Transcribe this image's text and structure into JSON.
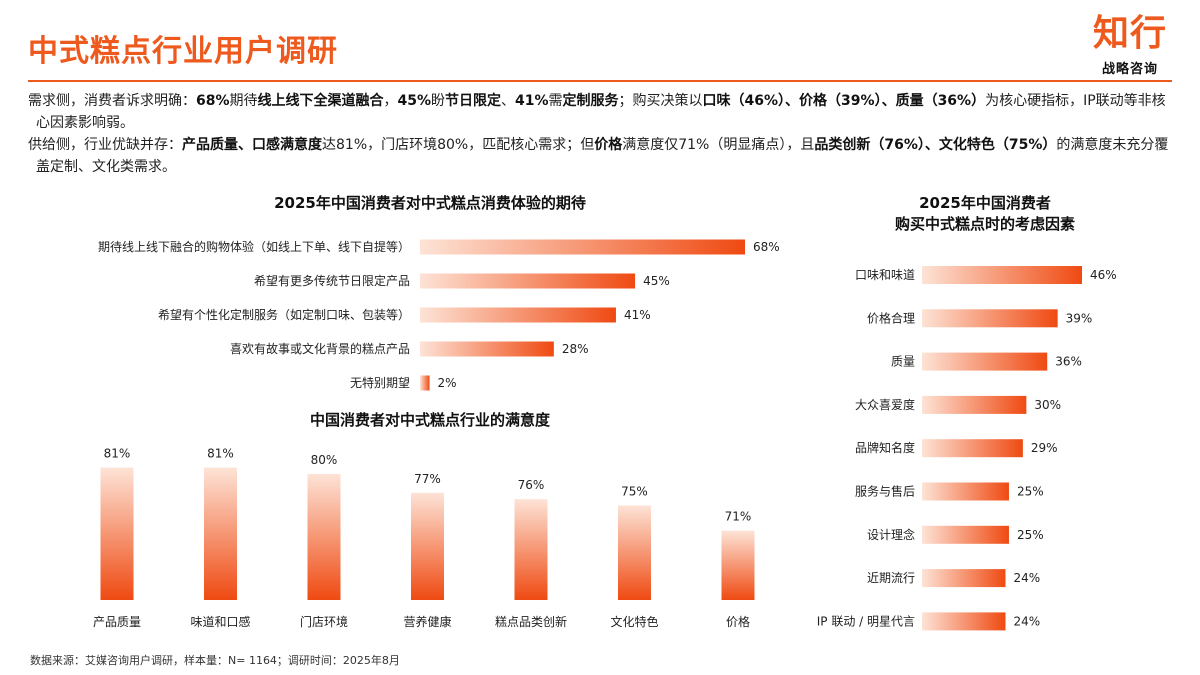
{
  "header": {
    "title": "中式糕点行业用户调研",
    "logo_text": "知行",
    "logo_sub": "战略咨询"
  },
  "summary": {
    "line1": [
      {
        "t": "需求侧，消费者诉求明确：",
        "b": false
      },
      {
        "t": "68%",
        "b": true
      },
      {
        "t": "期待",
        "b": false
      },
      {
        "t": "线上线下全渠道融合",
        "b": true
      },
      {
        "t": "，",
        "b": false
      },
      {
        "t": "45%",
        "b": true
      },
      {
        "t": "盼",
        "b": false
      },
      {
        "t": "节日限定",
        "b": true
      },
      {
        "t": "、",
        "b": false
      },
      {
        "t": "41%",
        "b": true
      },
      {
        "t": "需",
        "b": false
      },
      {
        "t": "定制服务",
        "b": true
      },
      {
        "t": "；购买决策以",
        "b": false
      },
      {
        "t": "口味（46%）、价格（39%）、质量（36%）",
        "b": true
      },
      {
        "t": "为核心硬指标，IP联动等非核心因素影响弱。",
        "b": false
      }
    ],
    "line2": [
      {
        "t": "供给侧，行业优缺并存：",
        "b": false
      },
      {
        "t": "产品质量、口感满意度",
        "b": true
      },
      {
        "t": "达81%，门店环境80%，匹配核心需求；但",
        "b": false
      },
      {
        "t": "价格",
        "b": true
      },
      {
        "t": "满意度仅71%（明显痛点），且",
        "b": false
      },
      {
        "t": "品类创新（76%）、文化特色（75%）",
        "b": true
      },
      {
        "t": "的满意度未充分覆盖定制、文化类需求。",
        "b": false
      }
    ]
  },
  "chart_data": [
    {
      "type": "bar",
      "orientation": "horizontal",
      "title": "2025年中国消费者对中式糕点消费体验的期待",
      "categories": [
        "期待线上线下融合的购物体验（如线上下单、线下自提等）",
        "希望有更多传统节日限定产品",
        "希望有个性化定制服务（如定制口味、包装等）",
        "喜欢有故事或文化背景的糕点产品",
        "无特别期望"
      ],
      "values": [
        68,
        45,
        41,
        28,
        2
      ],
      "value_labels": [
        "68%",
        "45%",
        "41%",
        "28%",
        "2%"
      ],
      "unit": "%",
      "xlim": [
        0,
        68
      ],
      "grid": false,
      "legend": "none"
    },
    {
      "type": "bar",
      "orientation": "vertical",
      "title": "中国消费者对中式糕点行业的满意度",
      "categories": [
        "产品质量",
        "味道和口感",
        "门店环境",
        "营养健康",
        "糕点品类创新",
        "文化特色",
        "价格"
      ],
      "values": [
        81,
        81,
        80,
        77,
        76,
        75,
        71
      ],
      "value_labels": [
        "81%",
        "81%",
        "80%",
        "77%",
        "76%",
        "75%",
        "71%"
      ],
      "unit": "%",
      "ylim": [
        60,
        83
      ],
      "grid": false,
      "legend": "none"
    },
    {
      "type": "bar",
      "orientation": "horizontal",
      "title": "2025年中国消费者\n购买中式糕点时的考虑因素",
      "categories": [
        "口味和味道",
        "价格合理",
        "质量",
        "大众喜爱度",
        "品牌知名度",
        "服务与售后",
        "设计理念",
        "近期流行",
        "IP 联动 / 明星代言"
      ],
      "values": [
        46,
        39,
        36,
        30,
        29,
        25,
        25,
        24,
        24
      ],
      "value_labels": [
        "46%",
        "39%",
        "36%",
        "30%",
        "29%",
        "25%",
        "25%",
        "24%",
        "24%"
      ],
      "unit": "%",
      "xlim": [
        0,
        46
      ],
      "grid": false,
      "legend": "none"
    }
  ],
  "footer": {
    "source": "数据来源：艾媒咨询用户调研，样本量：N= 1164；调研时间：2025年8月"
  },
  "colors": {
    "accent": "#ee5a1e",
    "bar_start": "#fde3d6",
    "bar_end": "#ef4a12",
    "text": "#222222"
  }
}
